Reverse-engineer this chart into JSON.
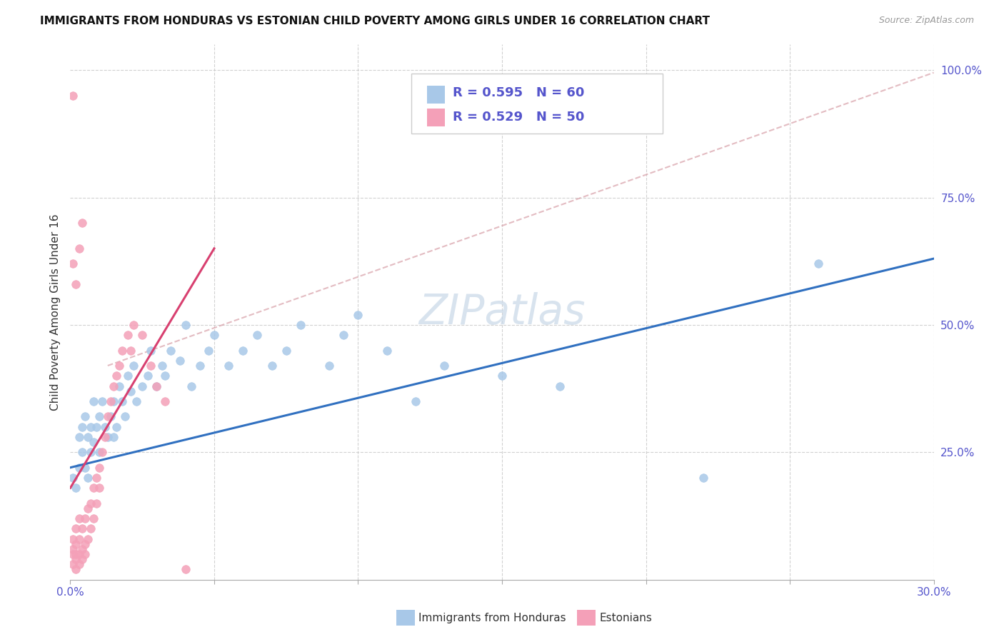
{
  "title": "IMMIGRANTS FROM HONDURAS VS ESTONIAN CHILD POVERTY AMONG GIRLS UNDER 16 CORRELATION CHART",
  "source": "Source: ZipAtlas.com",
  "ylabel": "Child Poverty Among Girls Under 16",
  "label_honduras": "Immigrants from Honduras",
  "label_estonians": "Estonians",
  "xlim": [
    0.0,
    0.3
  ],
  "ylim": [
    0.0,
    1.05
  ],
  "x_ticks": [
    0.0,
    0.05,
    0.1,
    0.15,
    0.2,
    0.25,
    0.3
  ],
  "x_tick_labels": [
    "0.0%",
    "",
    "",
    "",
    "",
    "",
    "30.0%"
  ],
  "y_ticks_right": [
    0.0,
    0.25,
    0.5,
    0.75,
    1.0
  ],
  "y_tick_labels_right": [
    "",
    "25.0%",
    "50.0%",
    "75.0%",
    "100.0%"
  ],
  "blue_color": "#a8c8e8",
  "pink_color": "#f4a0b8",
  "blue_line_color": "#3070c0",
  "pink_line_color": "#d84070",
  "pink_dash_color": "#d8a0a8",
  "watermark_color": "#c8d8e8",
  "grid_color": "#cccccc",
  "background_color": "#ffffff",
  "tick_color": "#5555cc",
  "blue_scatter_x": [
    0.001,
    0.002,
    0.003,
    0.003,
    0.004,
    0.004,
    0.005,
    0.005,
    0.006,
    0.006,
    0.007,
    0.007,
    0.008,
    0.008,
    0.009,
    0.01,
    0.01,
    0.011,
    0.012,
    0.013,
    0.014,
    0.015,
    0.015,
    0.016,
    0.017,
    0.018,
    0.019,
    0.02,
    0.021,
    0.022,
    0.023,
    0.025,
    0.027,
    0.028,
    0.03,
    0.032,
    0.033,
    0.035,
    0.038,
    0.04,
    0.042,
    0.045,
    0.048,
    0.05,
    0.055,
    0.06,
    0.065,
    0.07,
    0.075,
    0.08,
    0.09,
    0.095,
    0.1,
    0.11,
    0.12,
    0.13,
    0.15,
    0.17,
    0.22,
    0.26
  ],
  "blue_scatter_y": [
    0.2,
    0.18,
    0.22,
    0.28,
    0.25,
    0.3,
    0.22,
    0.32,
    0.2,
    0.28,
    0.25,
    0.3,
    0.27,
    0.35,
    0.3,
    0.32,
    0.25,
    0.35,
    0.3,
    0.28,
    0.32,
    0.35,
    0.28,
    0.3,
    0.38,
    0.35,
    0.32,
    0.4,
    0.37,
    0.42,
    0.35,
    0.38,
    0.4,
    0.45,
    0.38,
    0.42,
    0.4,
    0.45,
    0.43,
    0.5,
    0.38,
    0.42,
    0.45,
    0.48,
    0.42,
    0.45,
    0.48,
    0.42,
    0.45,
    0.5,
    0.42,
    0.48,
    0.52,
    0.45,
    0.35,
    0.42,
    0.4,
    0.38,
    0.2,
    0.62
  ],
  "pink_scatter_x": [
    0.001,
    0.001,
    0.001,
    0.001,
    0.002,
    0.002,
    0.002,
    0.002,
    0.002,
    0.003,
    0.003,
    0.003,
    0.003,
    0.004,
    0.004,
    0.004,
    0.005,
    0.005,
    0.005,
    0.006,
    0.006,
    0.007,
    0.007,
    0.008,
    0.008,
    0.009,
    0.009,
    0.01,
    0.01,
    0.011,
    0.012,
    0.013,
    0.014,
    0.015,
    0.016,
    0.017,
    0.018,
    0.02,
    0.021,
    0.022,
    0.025,
    0.028,
    0.03,
    0.033,
    0.003,
    0.004,
    0.001,
    0.002,
    0.001,
    0.04
  ],
  "pink_scatter_y": [
    0.05,
    0.08,
    0.03,
    0.06,
    0.05,
    0.07,
    0.04,
    0.1,
    0.02,
    0.05,
    0.08,
    0.03,
    0.12,
    0.06,
    0.04,
    0.1,
    0.07,
    0.12,
    0.05,
    0.08,
    0.14,
    0.1,
    0.15,
    0.12,
    0.18,
    0.15,
    0.2,
    0.18,
    0.22,
    0.25,
    0.28,
    0.32,
    0.35,
    0.38,
    0.4,
    0.42,
    0.45,
    0.48,
    0.45,
    0.5,
    0.48,
    0.42,
    0.38,
    0.35,
    0.65,
    0.7,
    0.62,
    0.58,
    0.95,
    0.02
  ],
  "blue_line_x": [
    0.0,
    0.3
  ],
  "blue_line_y": [
    0.22,
    0.63
  ],
  "pink_line_x": [
    0.0,
    0.05
  ],
  "pink_line_y": [
    0.18,
    0.65
  ],
  "pink_dashed_line_x": [
    0.013,
    0.3
  ],
  "pink_dashed_line_y": [
    0.42,
    0.995
  ]
}
